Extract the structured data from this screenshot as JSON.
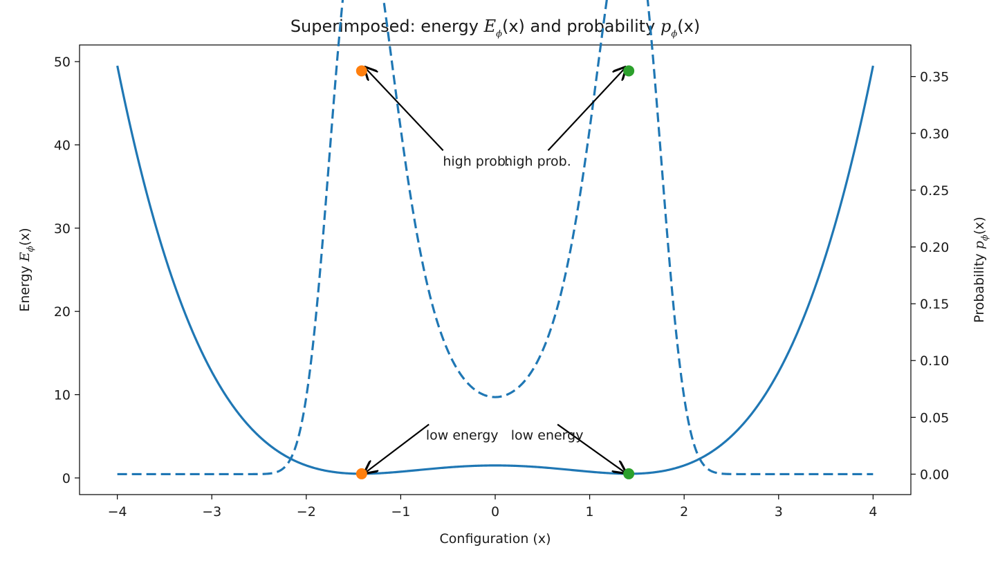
{
  "chart_data": {
    "type": "line",
    "title": {
      "prefix": "Superimposed: energy ",
      "energy_symbol": "E",
      "energy_sub": "ϕ",
      "energy_arg": "(x)",
      "middle": " and probability ",
      "prob_symbol": "p",
      "prob_sub": "ϕ",
      "prob_arg": "(x)"
    },
    "xlabel": "Configuration (x)",
    "ylabel_left": {
      "prefix": "Energy  ",
      "symbol": "E",
      "sub": "ϕ",
      "arg": "(x)"
    },
    "ylabel_right": {
      "prefix": "Probability  ",
      "symbol": "p",
      "sub": "ϕ",
      "arg": "(x)"
    },
    "xlim": [
      -4.4,
      4.4
    ],
    "ylim_left": [
      -2.0,
      52.0
    ],
    "ylim_right": [
      -0.018,
      0.3778
    ],
    "x_ticks": [
      -4,
      -3,
      -2,
      -1,
      0,
      1,
      2,
      3,
      4
    ],
    "x_tick_labels": [
      "−4",
      "−3",
      "−2",
      "−1",
      "0",
      "1",
      "2",
      "3",
      "4"
    ],
    "y_left_ticks": [
      0,
      10,
      20,
      30,
      40,
      50
    ],
    "y_left_tick_labels": [
      "0",
      "10",
      "20",
      "30",
      "40",
      "50"
    ],
    "y_right_ticks": [
      0.0,
      0.05,
      0.1,
      0.15,
      0.2,
      0.25,
      0.3,
      0.35
    ],
    "y_right_tick_labels": [
      "0.00",
      "0.05",
      "0.10",
      "0.15",
      "0.20",
      "0.25",
      "0.30",
      "0.35"
    ],
    "grid": false,
    "energy_formula": "E(x) = 0.25*x^4 - 1.0*x^2 + 1.5",
    "probability_formula": "p(x) = exp(-2*E(x)) / Z",
    "x_range": [
      -4,
      4
    ],
    "series": [
      {
        "axis": "left",
        "style": "solid",
        "color": "#1f77b4"
      },
      {
        "axis": "right",
        "style": "dashed",
        "color": "#1f77b4"
      }
    ],
    "markers": [
      {
        "x": -1.414,
        "y": 0.5,
        "axis": "left",
        "color": "#ff7f0e"
      },
      {
        "x": 1.414,
        "y": 0.5,
        "axis": "left",
        "color": "#2ca02c"
      },
      {
        "x": -1.414,
        "y": 0.355,
        "axis": "right",
        "color": "#ff7f0e"
      },
      {
        "x": 1.414,
        "y": 0.355,
        "axis": "right",
        "color": "#2ca02c"
      }
    ],
    "annotations": [
      {
        "text": "high prob.",
        "text_x": -0.2,
        "text_y": 37.5,
        "align": "middle",
        "target_x": -1.38,
        "target_y": 49.3
      },
      {
        "text": "high prob.",
        "text_x": 0.45,
        "text_y": 37.5,
        "align": "middle",
        "target_x": 1.38,
        "target_y": 49.3
      },
      {
        "text": "low energy",
        "text_x": -0.35,
        "text_y": 4.6,
        "align": "middle",
        "target_x": -1.38,
        "target_y": 0.6
      },
      {
        "text": "low energy",
        "text_x": 0.55,
        "text_y": 4.6,
        "align": "middle",
        "target_x": 1.38,
        "target_y": 0.6
      }
    ]
  }
}
